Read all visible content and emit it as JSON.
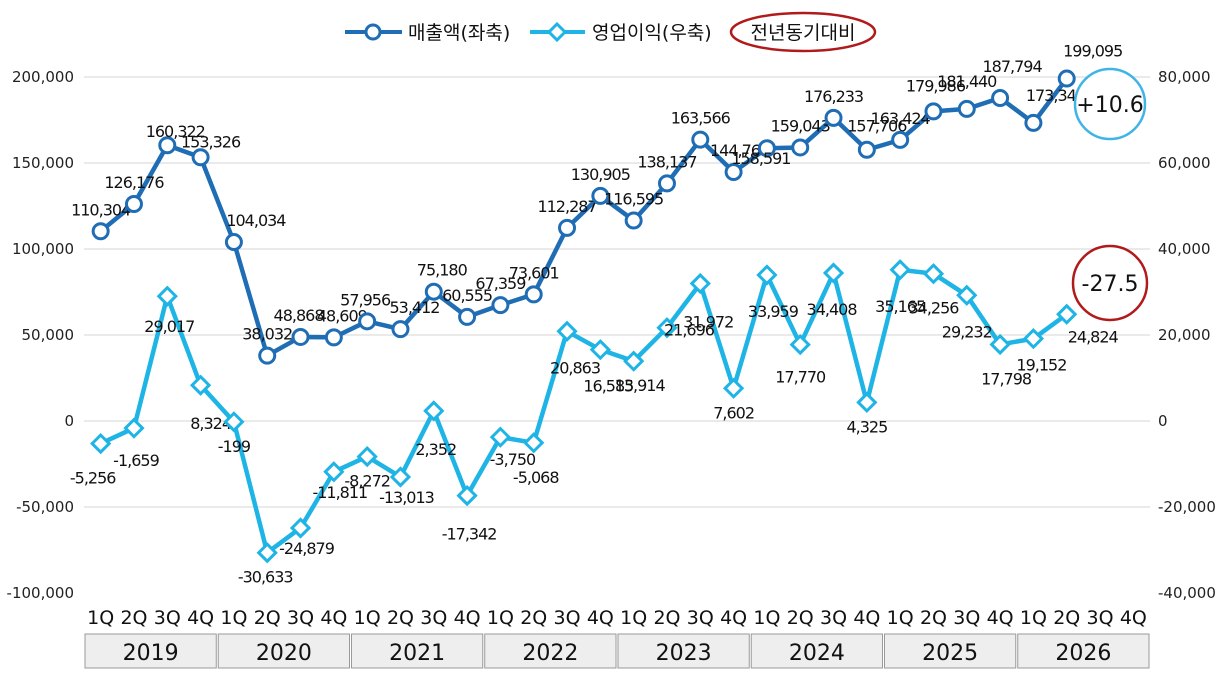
{
  "chart_data": {
    "type": "line",
    "left_axis": {
      "ylim": [
        -100000,
        200000
      ],
      "ticks": [
        "200,000",
        "150,000",
        "100,000",
        "50,000",
        "0",
        "-50,000",
        "-100,000"
      ]
    },
    "right_axis": {
      "ylim": [
        -40000,
        80000
      ],
      "ticks": [
        "80,000",
        "60,000",
        "40,000",
        "20,000",
        "0",
        "-20,000",
        "-40,000"
      ]
    },
    "quarters": [
      "1Q",
      "2Q",
      "3Q",
      "4Q"
    ],
    "years": [
      "2019",
      "2020",
      "2021",
      "2022",
      "2023",
      "2024",
      "2025",
      "2026"
    ],
    "series": [
      {
        "name": "매출액(좌축)",
        "axis": "left",
        "color": "#1f6db5",
        "values": [
          110304,
          126176,
          160322,
          153326,
          104034,
          38032,
          48868,
          48609,
          57956,
          53412,
          75180,
          60555,
          67359,
          73601,
          112287,
          130905,
          116595,
          138137,
          163566,
          144768,
          158591,
          159043,
          176233,
          157706,
          163424,
          179986,
          181440,
          187794,
          173340,
          199095
        ],
        "labels": [
          "110,304",
          "126,176",
          "160,322",
          "153,326",
          "104,034",
          "38,032",
          "48,868",
          "48,609",
          "57,956",
          "53,412",
          "75,180",
          "60,555",
          "67,359",
          "73,601",
          "112,287",
          "130,905",
          "116,595",
          "138,137",
          "163,566",
          "144,768",
          "158,591",
          "159,043",
          "176,233",
          "157,706",
          "163,424",
          "179,986",
          "181,440",
          "187,794",
          "173,340",
          "199,095"
        ]
      },
      {
        "name": "영업이익(우축)",
        "axis": "right",
        "color": "#1fb4e6",
        "values": [
          -5256,
          -1659,
          29017,
          8324,
          -199,
          -30633,
          -24879,
          -11811,
          -8272,
          -13013,
          2352,
          -17342,
          -3750,
          -5068,
          20863,
          16585,
          13914,
          21696,
          31972,
          7602,
          33959,
          17770,
          34408,
          4325,
          35165,
          34256,
          29232,
          17798,
          19152,
          24824
        ],
        "labels": [
          "-5,256",
          "-1,659",
          "29,017",
          "8,324",
          "-199",
          "-30,633",
          "-24,879",
          "-11,811",
          "-8,272",
          "-13,013",
          "2,352",
          "-17,342",
          "-3,750",
          "-5,068",
          "20,863",
          "16,585",
          "13,914",
          "21,696",
          "31,972",
          "7,602",
          "33,959",
          "17,770",
          "34,408",
          "4,325",
          "35,165",
          "34,256",
          "29,232",
          "17,798",
          "19,152",
          "24,824"
        ]
      }
    ],
    "legend": {
      "position": "top",
      "yoy_label": "전년동기대비"
    },
    "badges": [
      {
        "text": "+10.6",
        "color": "#3fb4e6"
      },
      {
        "text": "-27.5",
        "color": "#b11a1a"
      }
    ],
    "grid": true
  }
}
